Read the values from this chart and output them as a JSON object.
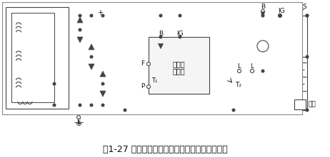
{
  "title": "图1-27 夏利轿车用整体式交流发电机电路原理图",
  "title_fontsize": 9,
  "bg_color": "#ffffff",
  "line_color": "#444444",
  "text_color": "#111111",
  "fig_width": 4.62,
  "fig_height": 2.21,
  "dpi": 100,
  "labels": {
    "plus": "+",
    "E": "E",
    "B_left": "B",
    "IG_left": "IG",
    "F": "F",
    "P": "P",
    "T1": "T₁",
    "T2": "T₂",
    "L_left": "L",
    "L_right": "L",
    "B_right": "B",
    "IG_right": "IG",
    "S": "S",
    "IC_line1": "单片集",
    "IC_line2": "成电路",
    "load": "负载"
  }
}
